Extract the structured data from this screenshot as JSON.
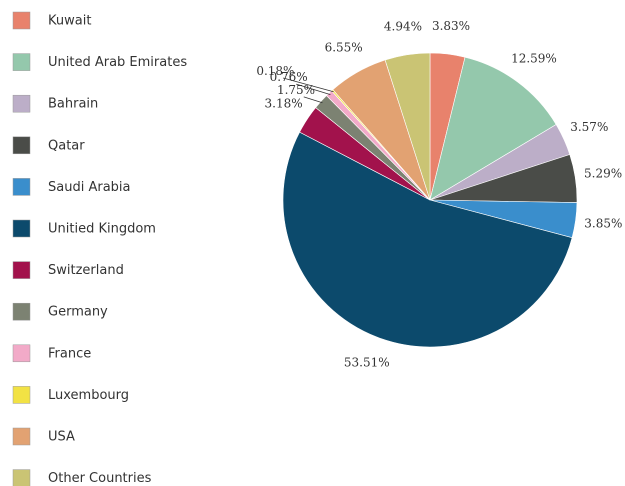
{
  "chart_data": {
    "type": "pie",
    "categories": [
      "Kuwait",
      "United Arab Emirates",
      "Bahrain",
      "Qatar",
      "Saudi Arabia",
      "Unitied Kingdom",
      "Switzerland",
      "Germany",
      "France",
      "Luxembourg",
      "USA",
      "Other Countries"
    ],
    "values": [
      3.83,
      12.59,
      3.57,
      5.29,
      3.85,
      53.51,
      3.18,
      1.75,
      0.76,
      0.18,
      6.55,
      4.94
    ],
    "value_labels": [
      "3.83%",
      "12.59%",
      "3.57%",
      "5.29%",
      "3.85%",
      "53.51%",
      "3.18%",
      "1.75%",
      "0.76%",
      "0.18%",
      "6.55%",
      "4.94%"
    ],
    "colors": [
      "#e8826c",
      "#94c8ac",
      "#bcaec8",
      "#4a4c48",
      "#3a8ecc",
      "#0c4a6c",
      "#a2124c",
      "#7c8272",
      "#f2aac8",
      "#f2e244",
      "#e2a272",
      "#cac474"
    ]
  }
}
